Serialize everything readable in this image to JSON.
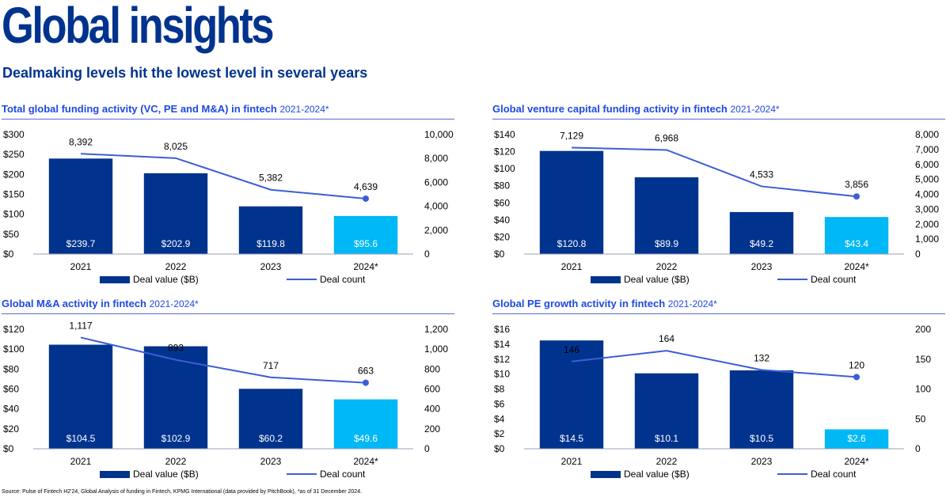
{
  "page": {
    "title": "Global insights",
    "subtitle": "Dealmaking levels hit the lowest level in several years",
    "source": "Source: Pulse of Fintech H2'24, Global Analysis of funding in Fintech, KPMG International (data provided by PitchBook), *as of 31 December 2024."
  },
  "colors": {
    "bar": "#00338d",
    "bar_highlight": "#00b8f5",
    "line": "#3d5dd6",
    "title": "#00338d",
    "panel_title": "#1e49e2"
  },
  "legend": {
    "bar_label": "Deal value ($B)",
    "line_label": "Deal count"
  },
  "chart_data": [
    {
      "type": "bar",
      "title": "Total global funding activity (VC, PE and M&A) in fintech",
      "period": "2021-2024*",
      "categories": [
        "2021",
        "2022",
        "2023",
        "2024*"
      ],
      "series": [
        {
          "name": "Deal value ($B)",
          "type": "bar",
          "axis": "left",
          "values": [
            239.7,
            202.9,
            119.8,
            95.6
          ],
          "labels": [
            "$239.7",
            "$202.9",
            "$119.8",
            "$95.6"
          ]
        },
        {
          "name": "Deal count",
          "type": "line",
          "axis": "right",
          "values": [
            8392,
            8025,
            5382,
            4639
          ],
          "labels": [
            "8,392",
            "8,025",
            "5,382",
            "4,639"
          ]
        }
      ],
      "highlight_index": 3,
      "ylim": [
        0,
        300
      ],
      "yticks": [
        "$0",
        "$50",
        "$100",
        "$150",
        "$200",
        "$250",
        "$300"
      ],
      "y2lim": [
        0,
        10000
      ],
      "y2ticks": [
        "0",
        "2,000",
        "4,000",
        "6,000",
        "8,000",
        "10,000"
      ],
      "legend_position": "bottom"
    },
    {
      "type": "bar",
      "title": "Global venture capital funding activity in fintech",
      "period": "2021-2024*",
      "categories": [
        "2021",
        "2022",
        "2023",
        "2024*"
      ],
      "series": [
        {
          "name": "Deal value ($B)",
          "type": "bar",
          "axis": "left",
          "values": [
            120.8,
            89.9,
            49.2,
            43.4
          ],
          "labels": [
            "$120.8",
            "$89.9",
            "$49.2",
            "$43.4"
          ]
        },
        {
          "name": "Deal count",
          "type": "line",
          "axis": "right",
          "values": [
            7129,
            6968,
            4533,
            3856
          ],
          "labels": [
            "7,129",
            "6,968",
            "4,533",
            "3,856"
          ]
        }
      ],
      "highlight_index": 3,
      "ylim": [
        0,
        140
      ],
      "yticks": [
        "$0",
        "$20",
        "$40",
        "$60",
        "$80",
        "$100",
        "$120",
        "$140"
      ],
      "y2lim": [
        0,
        8000
      ],
      "y2ticks": [
        "0",
        "1,000",
        "2,000",
        "3,000",
        "4,000",
        "5,000",
        "6,000",
        "7,000",
        "8,000"
      ],
      "legend_position": "bottom"
    },
    {
      "type": "bar",
      "title": "Global M&A activity in fintech",
      "period": "2021-2024*",
      "categories": [
        "2021",
        "2022",
        "2023",
        "2024*"
      ],
      "series": [
        {
          "name": "Deal value ($B)",
          "type": "bar",
          "axis": "left",
          "values": [
            104.5,
            102.9,
            60.2,
            49.6
          ],
          "labels": [
            "$104.5",
            "$102.9",
            "$60.2",
            "$49.6"
          ]
        },
        {
          "name": "Deal count",
          "type": "line",
          "axis": "right",
          "values": [
            1117,
            893,
            717,
            663
          ],
          "labels": [
            "1,117",
            "893",
            "717",
            "663"
          ]
        }
      ],
      "highlight_index": 3,
      "ylim": [
        0,
        120
      ],
      "yticks": [
        "$0",
        "$20",
        "$40",
        "$60",
        "$80",
        "$100",
        "$120"
      ],
      "y2lim": [
        0,
        1200
      ],
      "y2ticks": [
        "0",
        "200",
        "400",
        "600",
        "800",
        "1,000",
        "1,200"
      ],
      "legend_position": "bottom"
    },
    {
      "type": "bar",
      "title": "Global PE growth activity in fintech",
      "period": "2021-2024*",
      "categories": [
        "2021",
        "2022",
        "2023",
        "2024*"
      ],
      "series": [
        {
          "name": "Deal value ($B)",
          "type": "bar",
          "axis": "left",
          "values": [
            14.5,
            10.1,
            10.5,
            2.6
          ],
          "labels": [
            "$14.5",
            "$10.1",
            "$10.5",
            "$2.6"
          ]
        },
        {
          "name": "Deal count",
          "type": "line",
          "axis": "right",
          "values": [
            146,
            164,
            132,
            120
          ],
          "labels": [
            "146",
            "164",
            "132",
            "120"
          ]
        }
      ],
      "highlight_index": 3,
      "ylim": [
        0,
        16
      ],
      "yticks": [
        "$0",
        "$2",
        "$4",
        "$6",
        "$8",
        "$10",
        "$12",
        "$14",
        "$16"
      ],
      "y2lim": [
        0,
        200
      ],
      "y2ticks": [
        "0",
        "50",
        "100",
        "150",
        "200"
      ],
      "legend_position": "bottom"
    }
  ]
}
